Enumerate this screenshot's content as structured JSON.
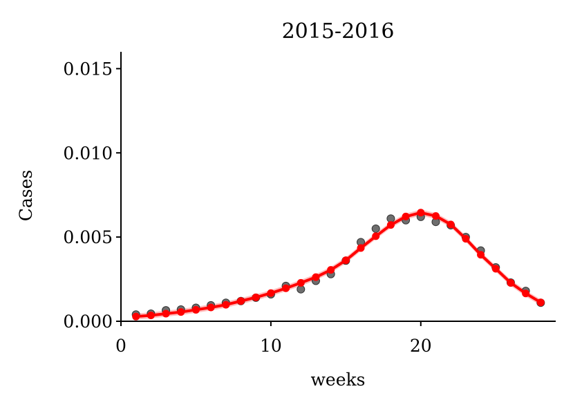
{
  "chart_data": {
    "type": "line",
    "title": "2015-2016",
    "xlabel": "weeks",
    "ylabel": "Cases",
    "xlim": [
      0,
      29
    ],
    "ylim": [
      0,
      0.016
    ],
    "xticks": [
      0,
      10,
      20
    ],
    "xtick_labels": [
      "0",
      "10",
      "20"
    ],
    "yticks": [
      0,
      0.005,
      0.01,
      0.015
    ],
    "ytick_labels": [
      "0.000",
      "0.005",
      "0.010",
      "0.015"
    ],
    "grid": false,
    "series": [
      {
        "kind": "observed-points",
        "color": "#555555",
        "x": [
          1,
          2,
          3,
          4,
          5,
          6,
          7,
          8,
          9,
          10,
          11,
          12,
          13,
          14,
          15,
          16,
          17,
          18,
          19,
          20,
          21,
          22,
          23,
          24,
          25,
          26,
          27,
          28
        ],
        "y": [
          0.0004,
          0.00045,
          0.00065,
          0.0007,
          0.0008,
          0.00095,
          0.0011,
          0.0012,
          0.0014,
          0.0016,
          0.0021,
          0.0019,
          0.0024,
          0.0028,
          0.0036,
          0.0047,
          0.0055,
          0.0061,
          0.006,
          0.0062,
          0.0059,
          0.0057,
          0.005,
          0.0042,
          0.0032,
          0.0023,
          0.0018,
          0.0011
        ]
      },
      {
        "kind": "model-fit",
        "color": "#ff0000",
        "x": [
          1,
          2,
          3,
          4,
          5,
          6,
          7,
          8,
          9,
          10,
          11,
          12,
          13,
          14,
          15,
          16,
          17,
          18,
          19,
          20,
          21,
          22,
          23,
          24,
          25,
          26,
          27,
          28
        ],
        "y": [
          0.00028,
          0.00035,
          0.00045,
          0.00055,
          0.00068,
          0.00082,
          0.00098,
          0.0012,
          0.00142,
          0.00167,
          0.00196,
          0.00228,
          0.00262,
          0.00305,
          0.00362,
          0.00435,
          0.00505,
          0.00572,
          0.00622,
          0.00645,
          0.00625,
          0.00575,
          0.0049,
          0.00395,
          0.00312,
          0.00228,
          0.00165,
          0.00112
        ],
        "band_width": 0.00018
      }
    ]
  }
}
